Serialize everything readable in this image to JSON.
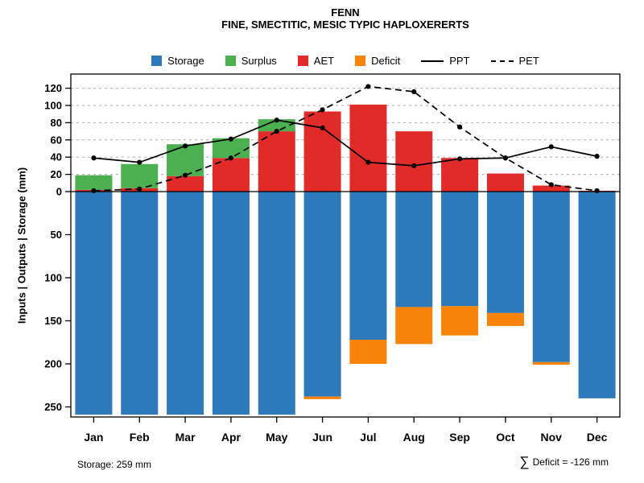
{
  "title": {
    "line1": "FENN",
    "line2": "FINE, SMECTITIC, MESIC TYPIC HAPLOXERERTS"
  },
  "y_axis_label": "Inputs | Outputs | Storage  (mm)",
  "legend": [
    {
      "label": "Storage",
      "color": "#2E79B9",
      "type": "box"
    },
    {
      "label": "Surplus",
      "color": "#4CAF50",
      "type": "box"
    },
    {
      "label": "AET",
      "color": "#E12B28",
      "type": "box"
    },
    {
      "label": "Deficit",
      "color": "#F9830B",
      "type": "box"
    },
    {
      "label": "PPT",
      "color": "#000000",
      "type": "line-solid"
    },
    {
      "label": "PET",
      "color": "#000000",
      "type": "line-dashed"
    }
  ],
  "footer": {
    "storage_note": "Storage: 259 mm",
    "sigma": "∑",
    "deficit_note": "Deficit = -126 mm"
  },
  "chart_data": {
    "type": "bar+line",
    "title": "FENN — FINE, SMECTITIC, MESIC TYPIC HAPLOXERERTS",
    "ylabel": "Inputs | Outputs | Storage (mm)",
    "categories": [
      "Jan",
      "Feb",
      "Mar",
      "Apr",
      "May",
      "Jun",
      "Jul",
      "Aug",
      "Sep",
      "Oct",
      "Nov",
      "Dec"
    ],
    "upper_ticks": [
      0,
      20,
      40,
      60,
      80,
      100,
      120
    ],
    "lower_ticks": [
      50,
      100,
      150,
      200,
      250
    ],
    "y_upper_range": [
      0,
      136
    ],
    "y_lower_range_inverted": [
      0,
      260
    ],
    "grid": "dashed horizontal on upper section",
    "legend_position": "top center",
    "series": [
      {
        "name": "AET",
        "render": "bar-up",
        "stack_order": 1,
        "color": "#E12B28",
        "values": [
          2,
          4,
          18,
          39,
          70,
          93,
          101,
          70,
          39,
          21,
          7,
          1
        ]
      },
      {
        "name": "Surplus",
        "render": "bar-up",
        "stack_order": 2,
        "color": "#4CAF50",
        "values": [
          17,
          28,
          37,
          23,
          14,
          0,
          0,
          0,
          0,
          0,
          0,
          0
        ]
      },
      {
        "name": "Storage",
        "render": "bar-down",
        "stack_order": 1,
        "color": "#2E79B9",
        "values": [
          259,
          259,
          259,
          259,
          259,
          238,
          172,
          134,
          133,
          141,
          198,
          240
        ]
      },
      {
        "name": "Deficit",
        "render": "bar-down",
        "stack_order": 2,
        "color": "#F9830B",
        "values": [
          0,
          0,
          0,
          0,
          0,
          3,
          28,
          43,
          34,
          15,
          3,
          0
        ]
      },
      {
        "name": "PPT",
        "render": "line",
        "style": "solid",
        "color": "#000000",
        "markers": true,
        "values": [
          39,
          34,
          53,
          61,
          83,
          74,
          34,
          30,
          38,
          39,
          52,
          41
        ]
      },
      {
        "name": "PET",
        "render": "line",
        "style": "dashed",
        "color": "#000000",
        "markers": true,
        "values": [
          1,
          3,
          19,
          39,
          70,
          95,
          122,
          116,
          75,
          39,
          8,
          1
        ]
      }
    ],
    "annotations": {
      "storage_capacity_mm": "Storage: 259 mm",
      "sum_deficit_mm": "∑ Deficit = -126 mm"
    }
  }
}
